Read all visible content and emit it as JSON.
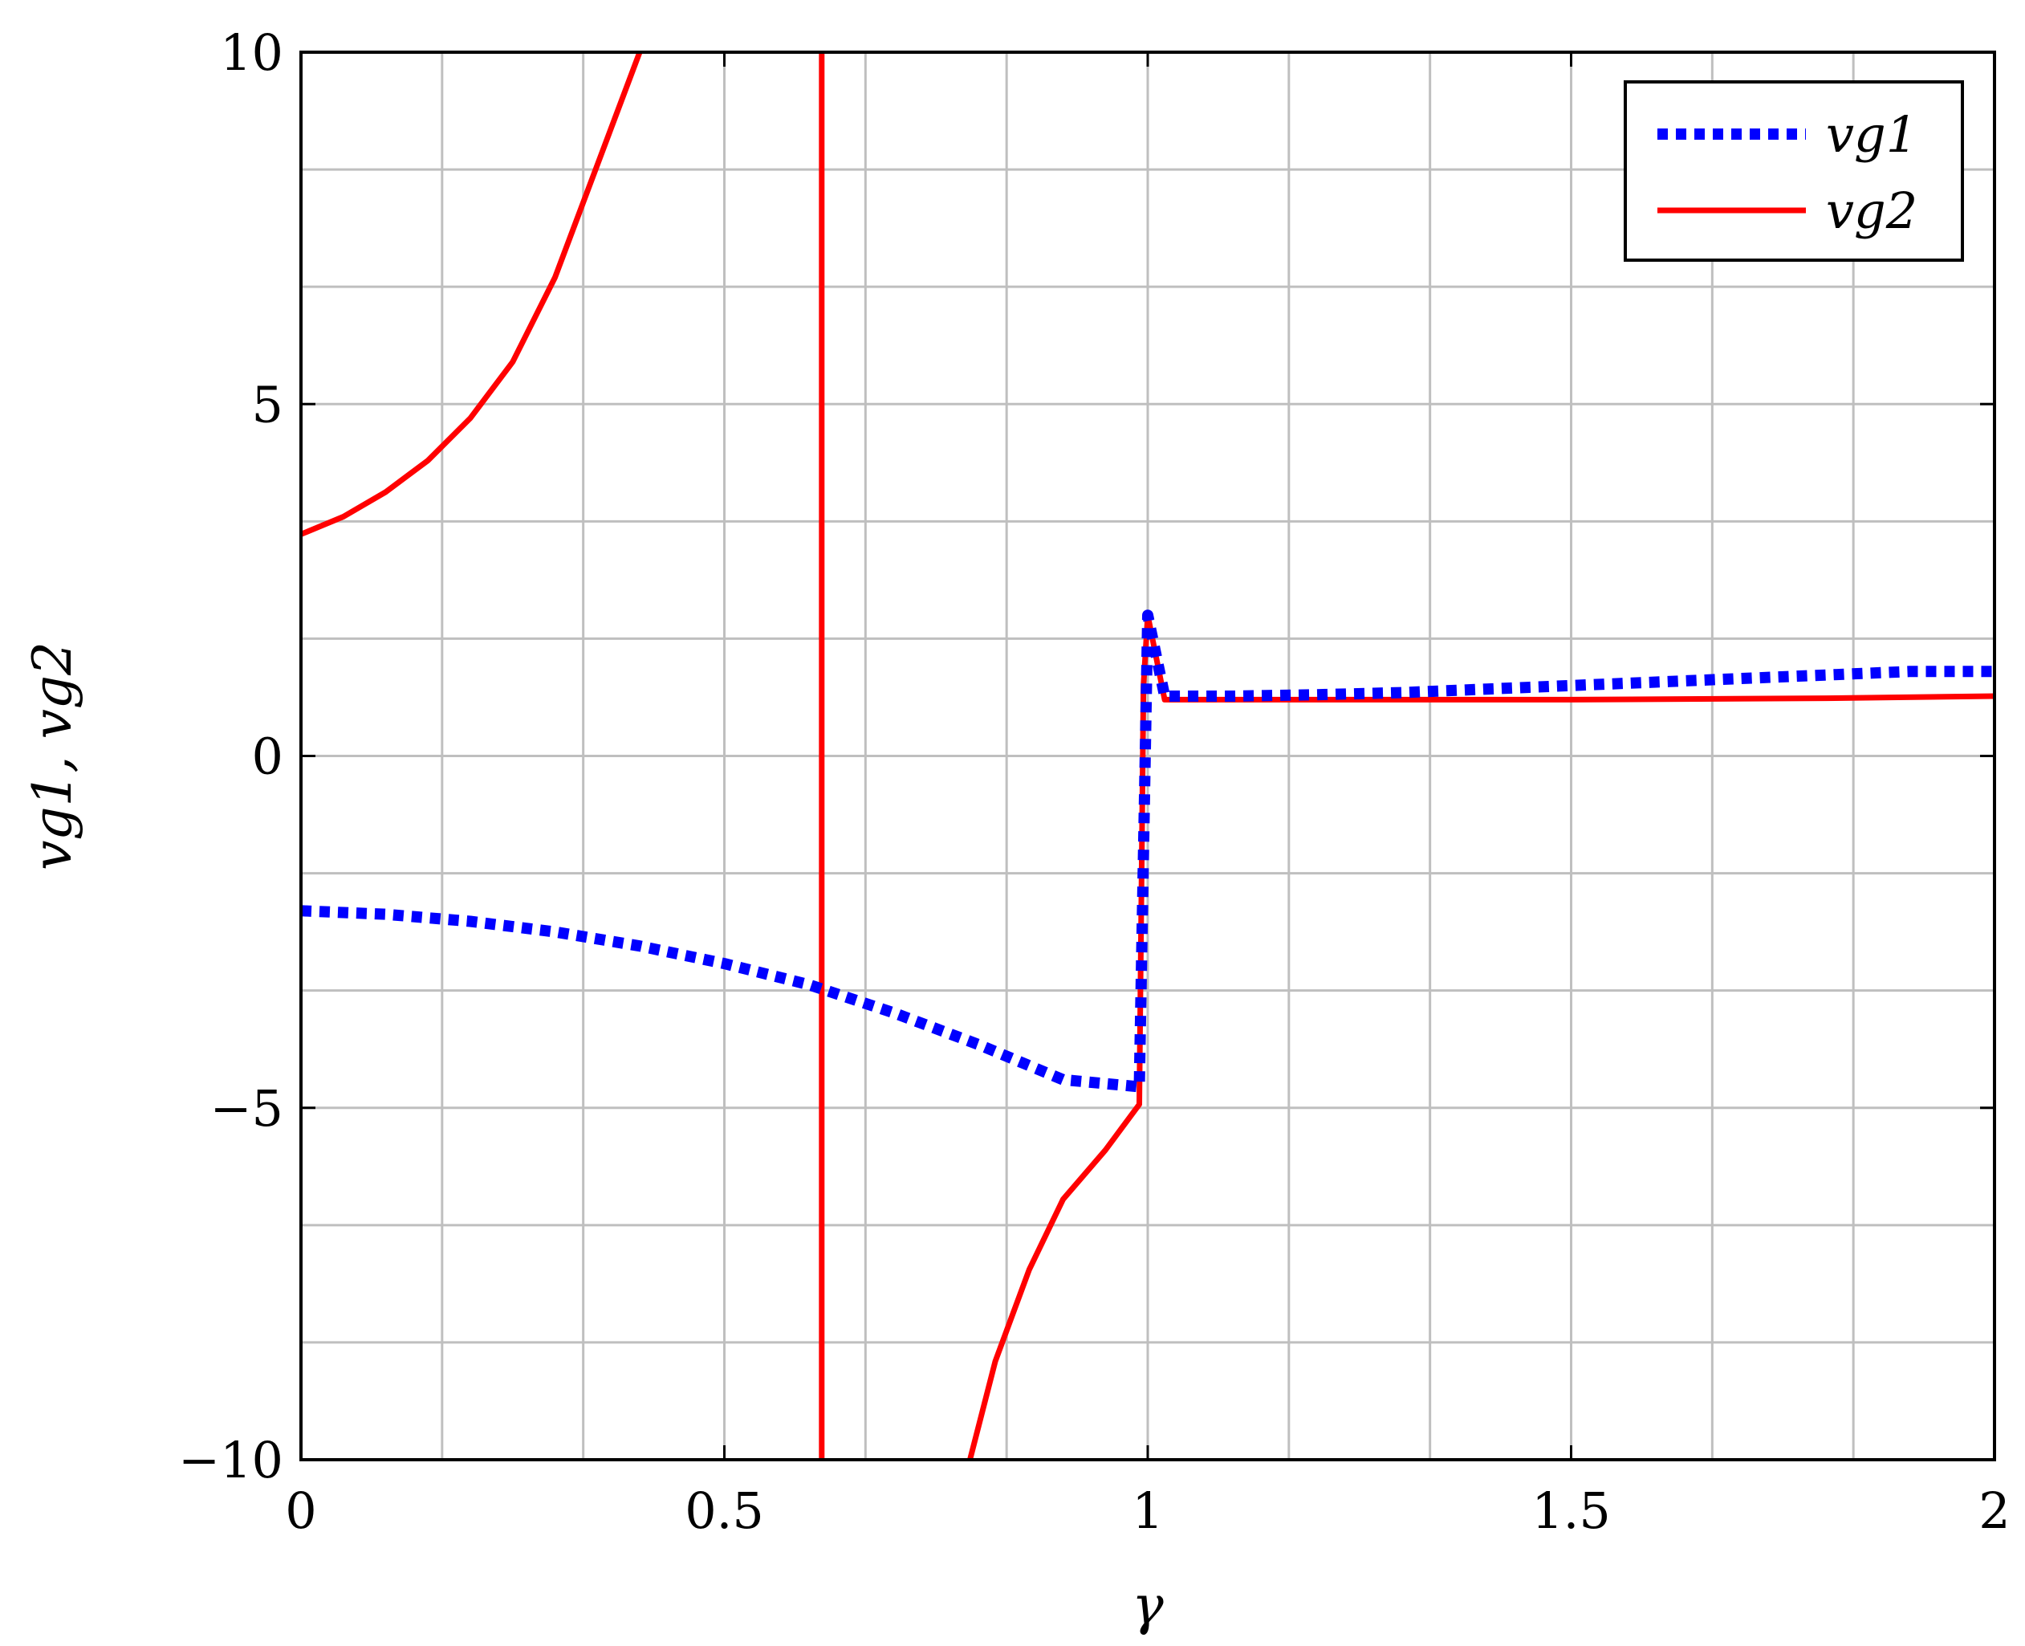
{
  "chart_data": {
    "type": "line",
    "title": "",
    "xlabel": "γ",
    "ylabel": "vg1, vg2",
    "xlim": [
      0,
      2
    ],
    "ylim": [
      -10,
      10
    ],
    "xticks": [
      {
        "value": 0,
        "label": "0"
      },
      {
        "value": 0.5,
        "label": "0.5"
      },
      {
        "value": 1,
        "label": "1"
      },
      {
        "value": 1.5,
        "label": "1.5"
      },
      {
        "value": 2,
        "label": "2"
      }
    ],
    "yticks": [
      {
        "value": -10,
        "label": "−10"
      },
      {
        "value": -5,
        "label": "−5"
      },
      {
        "value": 0,
        "label": "0"
      },
      {
        "value": 5,
        "label": "5"
      },
      {
        "value": 10,
        "label": "10"
      }
    ],
    "grid": true,
    "minor_grid": true,
    "legend_position": "top-right",
    "series": [
      {
        "name": "vg1",
        "color": "#0000ff",
        "style": "dotted",
        "segments": [
          [
            [
              0,
              -2.2
            ],
            [
              0.1,
              -2.25
            ],
            [
              0.2,
              -2.35
            ],
            [
              0.3,
              -2.5
            ],
            [
              0.4,
              -2.7
            ],
            [
              0.5,
              -2.95
            ],
            [
              0.6,
              -3.25
            ],
            [
              0.7,
              -3.65
            ],
            [
              0.8,
              -4.1
            ],
            [
              0.9,
              -4.6
            ],
            [
              0.99,
              -4.7
            ],
            [
              1.0,
              2.0
            ],
            [
              1.02,
              0.85
            ],
            [
              1.1,
              0.85
            ],
            [
              1.2,
              0.87
            ],
            [
              1.3,
              0.9
            ],
            [
              1.4,
              0.95
            ],
            [
              1.5,
              1.0
            ],
            [
              1.6,
              1.05
            ],
            [
              1.7,
              1.1
            ],
            [
              1.8,
              1.15
            ],
            [
              1.9,
              1.2
            ],
            [
              2.0,
              1.2
            ]
          ]
        ]
      },
      {
        "name": "vg2",
        "color": "#ff0000",
        "style": "solid",
        "segments": [
          [
            [
              0,
              3.15
            ],
            [
              0.05,
              3.4
            ],
            [
              0.1,
              3.75
            ],
            [
              0.15,
              4.2
            ],
            [
              0.2,
              4.8
            ],
            [
              0.25,
              5.6
            ],
            [
              0.3,
              6.8
            ],
            [
              0.35,
              8.4
            ],
            [
              0.4,
              10
            ]
          ],
          [
            [
              0.615,
              10
            ],
            [
              0.615,
              -10
            ]
          ],
          [
            [
              0.79,
              -10
            ],
            [
              0.82,
              -8.6
            ],
            [
              0.86,
              -7.3
            ],
            [
              0.9,
              -6.3
            ],
            [
              0.95,
              -5.6
            ],
            [
              0.99,
              -4.95
            ],
            [
              0.995,
              1.0
            ],
            [
              1.0,
              2.0
            ],
            [
              1.02,
              0.8
            ],
            [
              1.2,
              0.8
            ],
            [
              1.5,
              0.8
            ],
            [
              1.8,
              0.82
            ],
            [
              2.0,
              0.85
            ]
          ]
        ]
      }
    ]
  }
}
